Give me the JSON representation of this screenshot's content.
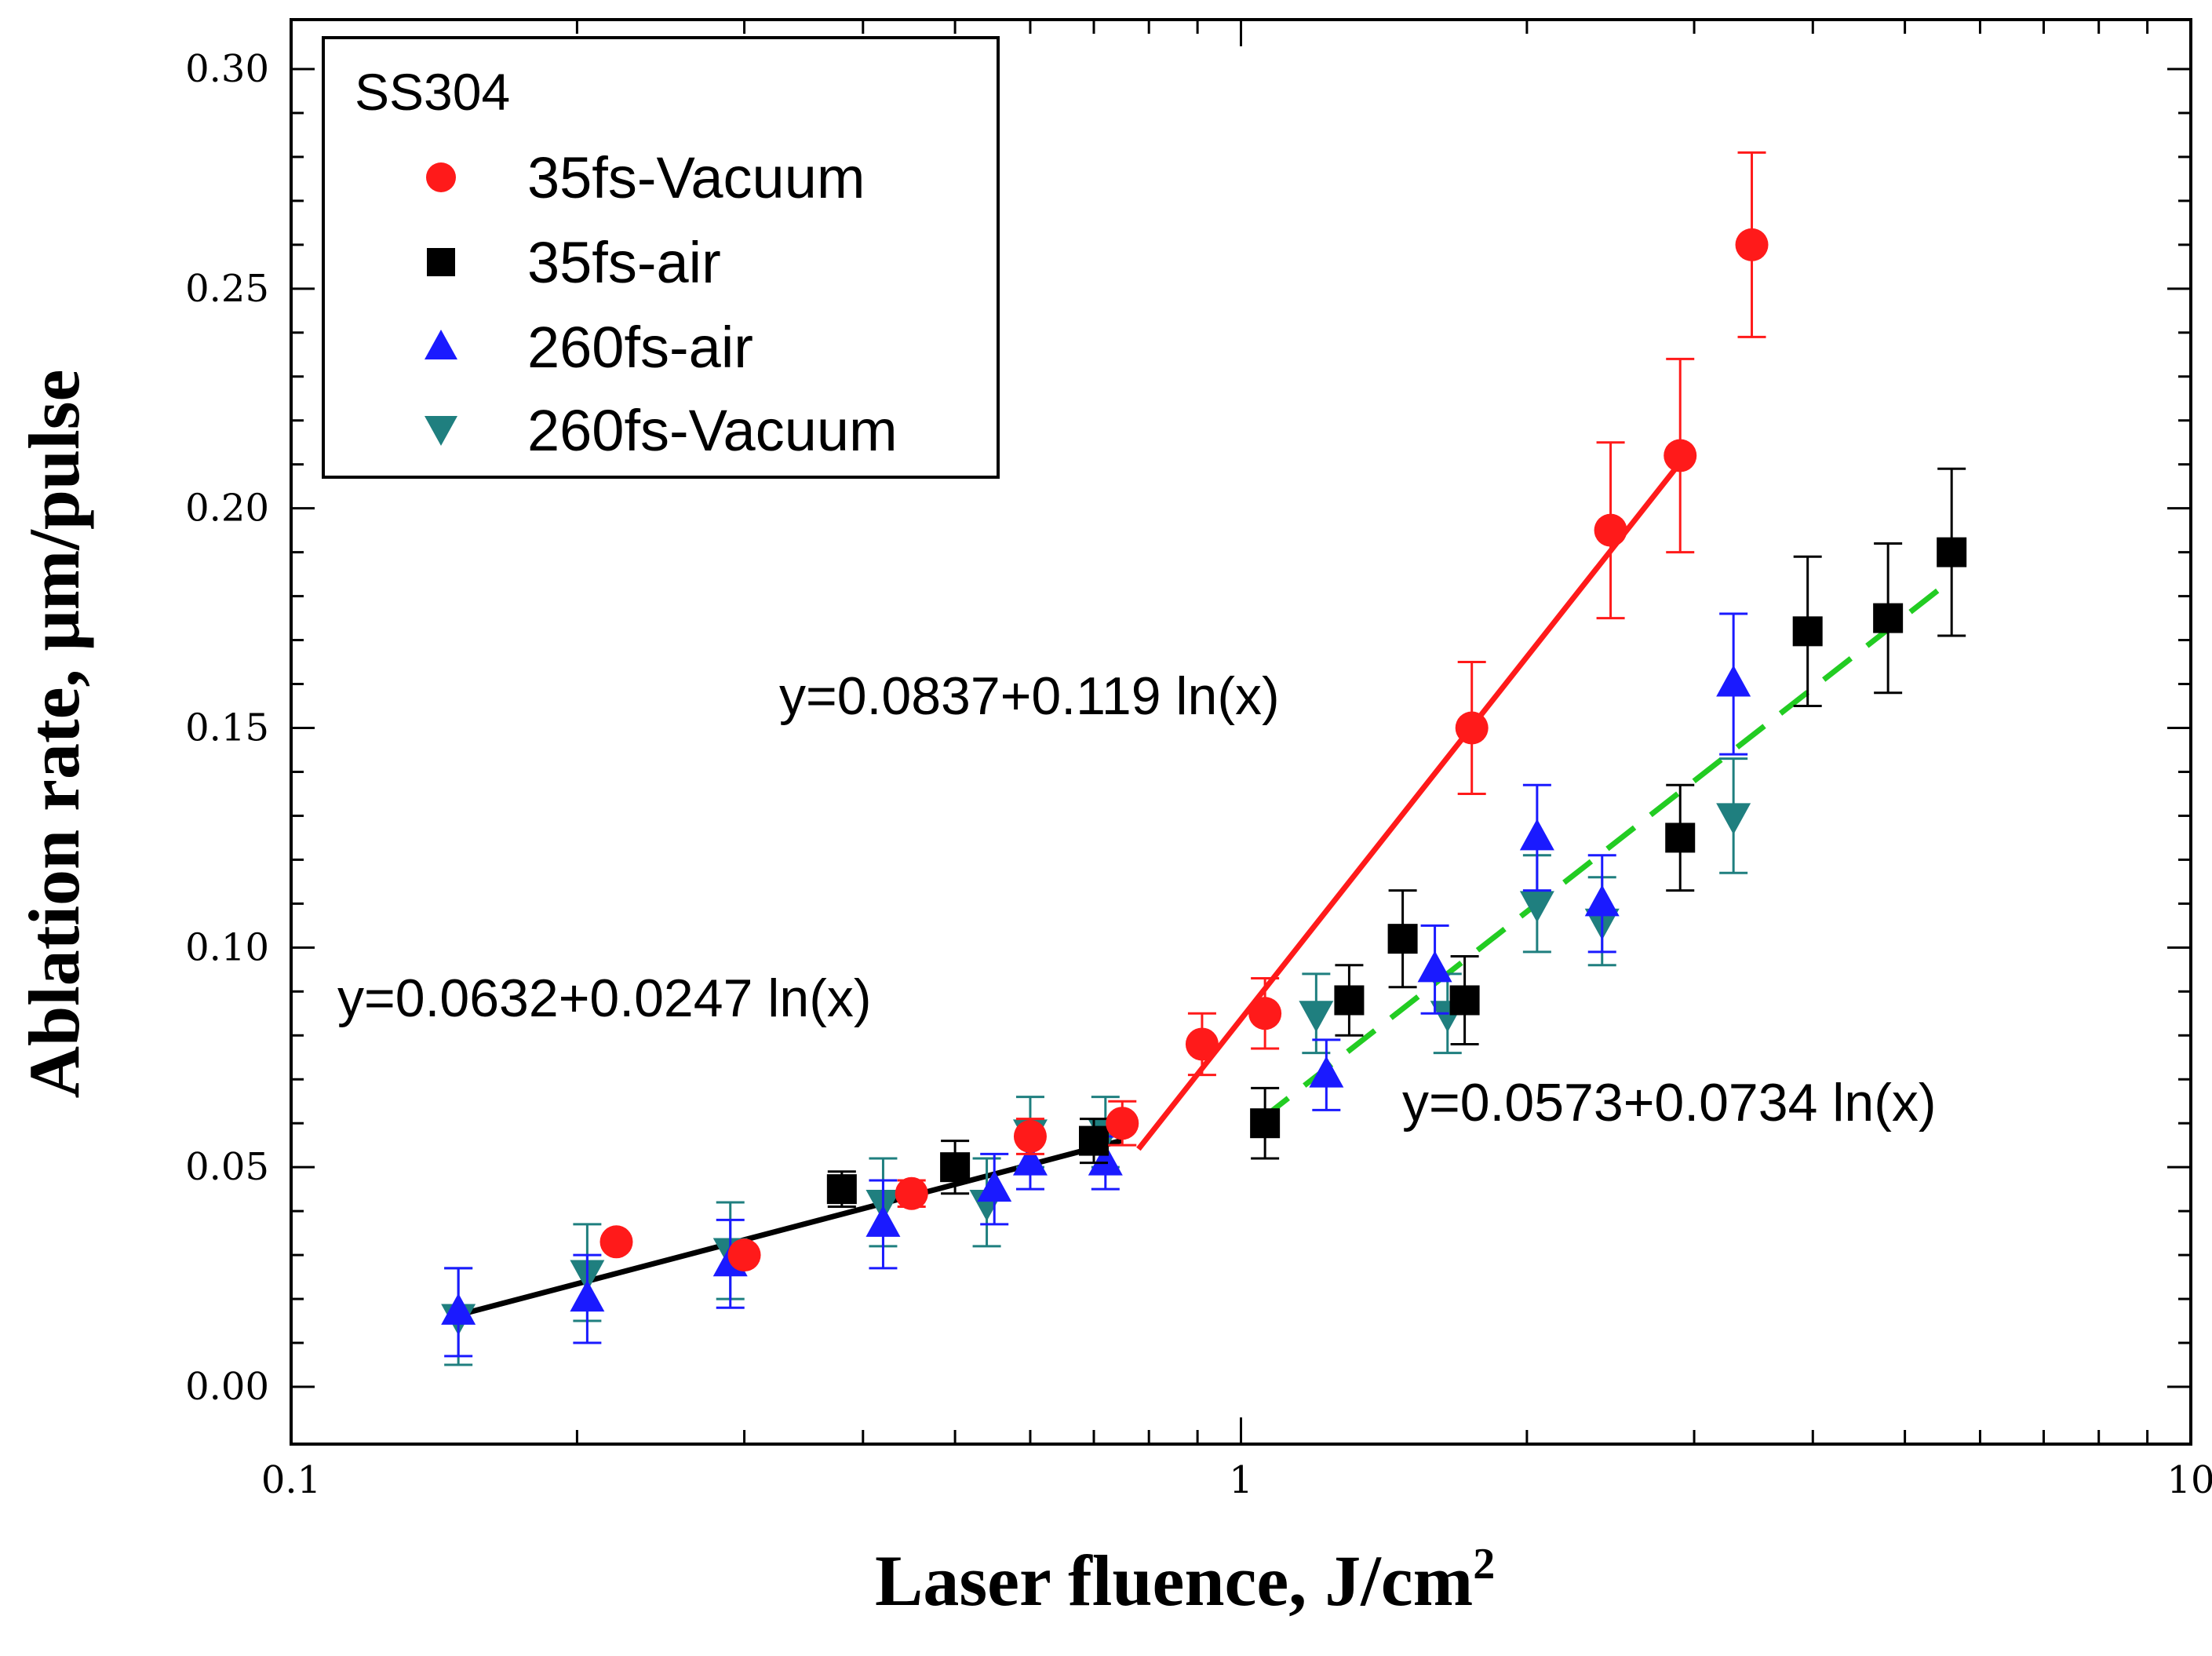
{
  "chart_data": {
    "type": "scatter",
    "xscale": "log",
    "xlim": [
      0.1,
      10
    ],
    "ylim": [
      0,
      0.3
    ],
    "xlabel": "Laser fluence, J/cm",
    "xlabel_superscript": "2",
    "ylabel": "Ablation rate, μm/pulse",
    "xticks": [
      {
        "value": 0.1,
        "label": "0.1"
      },
      {
        "value": 1,
        "label": "1"
      },
      {
        "value": 10,
        "label": "10"
      }
    ],
    "yticks": [
      {
        "value": 0.0,
        "label": "0.00"
      },
      {
        "value": 0.05,
        "label": "0.05"
      },
      {
        "value": 0.1,
        "label": "0.10"
      },
      {
        "value": 0.15,
        "label": "0.15"
      },
      {
        "value": 0.2,
        "label": "0.20"
      },
      {
        "value": 0.25,
        "label": "0.25"
      },
      {
        "value": 0.3,
        "label": "0.30"
      }
    ],
    "legend": {
      "title": "SS304",
      "position": "top-left"
    },
    "series": [
      {
        "name": "35fs-Vacuum",
        "marker": "circle",
        "color": "#ff1a1a",
        "points": [
          {
            "x": 0.22,
            "y": 0.033,
            "err": 0.0
          },
          {
            "x": 0.3,
            "y": 0.03,
            "err": 0.0
          },
          {
            "x": 0.45,
            "y": 0.044,
            "err": 0.003
          },
          {
            "x": 0.6,
            "y": 0.057,
            "err": 0.004
          },
          {
            "x": 0.75,
            "y": 0.06,
            "err": 0.005
          },
          {
            "x": 0.91,
            "y": 0.078,
            "err": 0.007
          },
          {
            "x": 1.06,
            "y": 0.085,
            "err": 0.008
          },
          {
            "x": 1.75,
            "y": 0.15,
            "err": 0.015
          },
          {
            "x": 2.45,
            "y": 0.195,
            "err": 0.02
          },
          {
            "x": 2.9,
            "y": 0.212,
            "err": 0.022
          },
          {
            "x": 3.45,
            "y": 0.26,
            "err": 0.021
          }
        ]
      },
      {
        "name": "35fs-air",
        "marker": "square",
        "color": "#000000",
        "points": [
          {
            "x": 0.38,
            "y": 0.045,
            "err": 0.004
          },
          {
            "x": 0.5,
            "y": 0.05,
            "err": 0.006
          },
          {
            "x": 0.7,
            "y": 0.056,
            "err": 0.005
          },
          {
            "x": 1.06,
            "y": 0.06,
            "err": 0.008
          },
          {
            "x": 1.3,
            "y": 0.088,
            "err": 0.008
          },
          {
            "x": 1.48,
            "y": 0.102,
            "err": 0.011
          },
          {
            "x": 1.72,
            "y": 0.088,
            "err": 0.01
          },
          {
            "x": 2.9,
            "y": 0.125,
            "err": 0.012
          },
          {
            "x": 3.95,
            "y": 0.172,
            "err": 0.017
          },
          {
            "x": 4.8,
            "y": 0.175,
            "err": 0.017
          },
          {
            "x": 5.6,
            "y": 0.19,
            "err": 0.019
          }
        ]
      },
      {
        "name": "260fs-air",
        "marker": "triangle-up",
        "color": "#1a1aff",
        "points": [
          {
            "x": 0.15,
            "y": 0.017,
            "err": 0.01
          },
          {
            "x": 0.205,
            "y": 0.02,
            "err": 0.01
          },
          {
            "x": 0.29,
            "y": 0.028,
            "err": 0.01
          },
          {
            "x": 0.42,
            "y": 0.037,
            "err": 0.01
          },
          {
            "x": 0.55,
            "y": 0.045,
            "err": 0.008
          },
          {
            "x": 0.6,
            "y": 0.051,
            "err": 0.006
          },
          {
            "x": 0.72,
            "y": 0.051,
            "err": 0.006
          },
          {
            "x": 1.23,
            "y": 0.071,
            "err": 0.008
          },
          {
            "x": 1.6,
            "y": 0.095,
            "err": 0.01
          },
          {
            "x": 2.05,
            "y": 0.125,
            "err": 0.012
          },
          {
            "x": 2.4,
            "y": 0.11,
            "err": 0.011
          },
          {
            "x": 3.3,
            "y": 0.16,
            "err": 0.016
          }
        ]
      },
      {
        "name": "260fs-Vacuum",
        "marker": "triangle-down",
        "color": "#1f7f7f",
        "points": [
          {
            "x": 0.15,
            "y": 0.016,
            "err": 0.011
          },
          {
            "x": 0.205,
            "y": 0.026,
            "err": 0.011
          },
          {
            "x": 0.29,
            "y": 0.031,
            "err": 0.011
          },
          {
            "x": 0.42,
            "y": 0.042,
            "err": 0.01
          },
          {
            "x": 0.54,
            "y": 0.042,
            "err": 0.01
          },
          {
            "x": 0.6,
            "y": 0.058,
            "err": 0.008
          },
          {
            "x": 0.72,
            "y": 0.058,
            "err": 0.008
          },
          {
            "x": 1.2,
            "y": 0.085,
            "err": 0.009
          },
          {
            "x": 1.65,
            "y": 0.085,
            "err": 0.009
          },
          {
            "x": 2.05,
            "y": 0.11,
            "err": 0.011
          },
          {
            "x": 2.4,
            "y": 0.106,
            "err": 0.01
          },
          {
            "x": 3.3,
            "y": 0.13,
            "err": 0.013
          }
        ]
      }
    ],
    "fits": [
      {
        "label": "y=0.0632+0.0247 ln(x)",
        "a": 0.0632,
        "b": 0.0247,
        "x_from": 0.15,
        "x_to": 0.75,
        "color": "#000000",
        "style": "solid"
      },
      {
        "label": "y=0.0837+0.119 ln(x)",
        "a": 0.0837,
        "b": 0.119,
        "x_from": 0.78,
        "x_to": 2.9,
        "color": "#ff1a1a",
        "style": "solid"
      },
      {
        "label": "y=0.0573+0.0734 ln(x)",
        "a": 0.0573,
        "b": 0.0734,
        "x_from": 1.05,
        "x_to": 5.5,
        "color": "#22cc22",
        "style": "dashed"
      }
    ]
  }
}
